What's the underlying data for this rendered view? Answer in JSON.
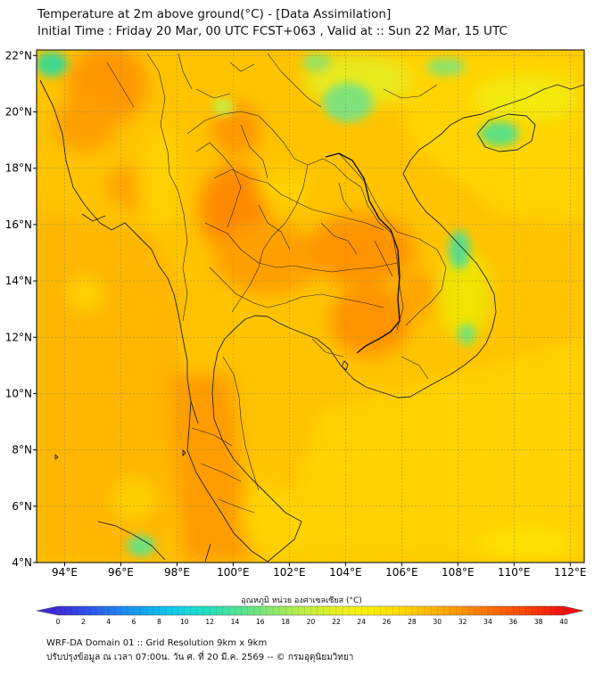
{
  "header": {
    "title": "Temperature at 2m above ground(°C) - [Data Assimilation]",
    "subtitle": "Initial Time : Friday 20 Mar, 00 UTC FCST+063 , Valid at :: Sun 22 Mar, 15 UTC"
  },
  "map": {
    "lon_range": [
      93,
      112.5
    ],
    "lat_range": [
      4,
      22.2
    ],
    "lon_ticks": [
      "94°E",
      "96°E",
      "98°E",
      "100°E",
      "102°E",
      "104°E",
      "106°E",
      "108°E",
      "110°E",
      "112°E"
    ],
    "lat_ticks": [
      "4°N",
      "6°N",
      "8°N",
      "10°N",
      "12°N",
      "14°N",
      "16°N",
      "18°N",
      "20°N",
      "22°N"
    ]
  },
  "colorbar": {
    "label": "อุณหภูมิ หน่วย องศาเซลเซียส (°C)",
    "ticks": [
      "0",
      "2",
      "4",
      "6",
      "8",
      "10",
      "12",
      "14",
      "16",
      "18",
      "20",
      "22",
      "24",
      "26",
      "28",
      "30",
      "32",
      "34",
      "36",
      "38",
      "40"
    ],
    "colors": [
      "#3b2bd6",
      "#2f55e8",
      "#1f86f2",
      "#10b3f2",
      "#16d6e0",
      "#2ee2b0",
      "#5fe58a",
      "#96ea60",
      "#c8ef3a",
      "#eef020",
      "#fff000",
      "#ffd400",
      "#ffb000",
      "#ff8a00",
      "#ff6400",
      "#ff3a00",
      "#f01010"
    ]
  },
  "footer": {
    "line1": "WRF-DA Domain 01 :: Grid Resolution 9km x 9km",
    "line2": "ปรับปรุงข้อมูล ณ เวลา 07:00น. วัน ศ. ที่ 20 มี.ค. 2569 -- © กรมอุตุนิยมวิทยา"
  }
}
